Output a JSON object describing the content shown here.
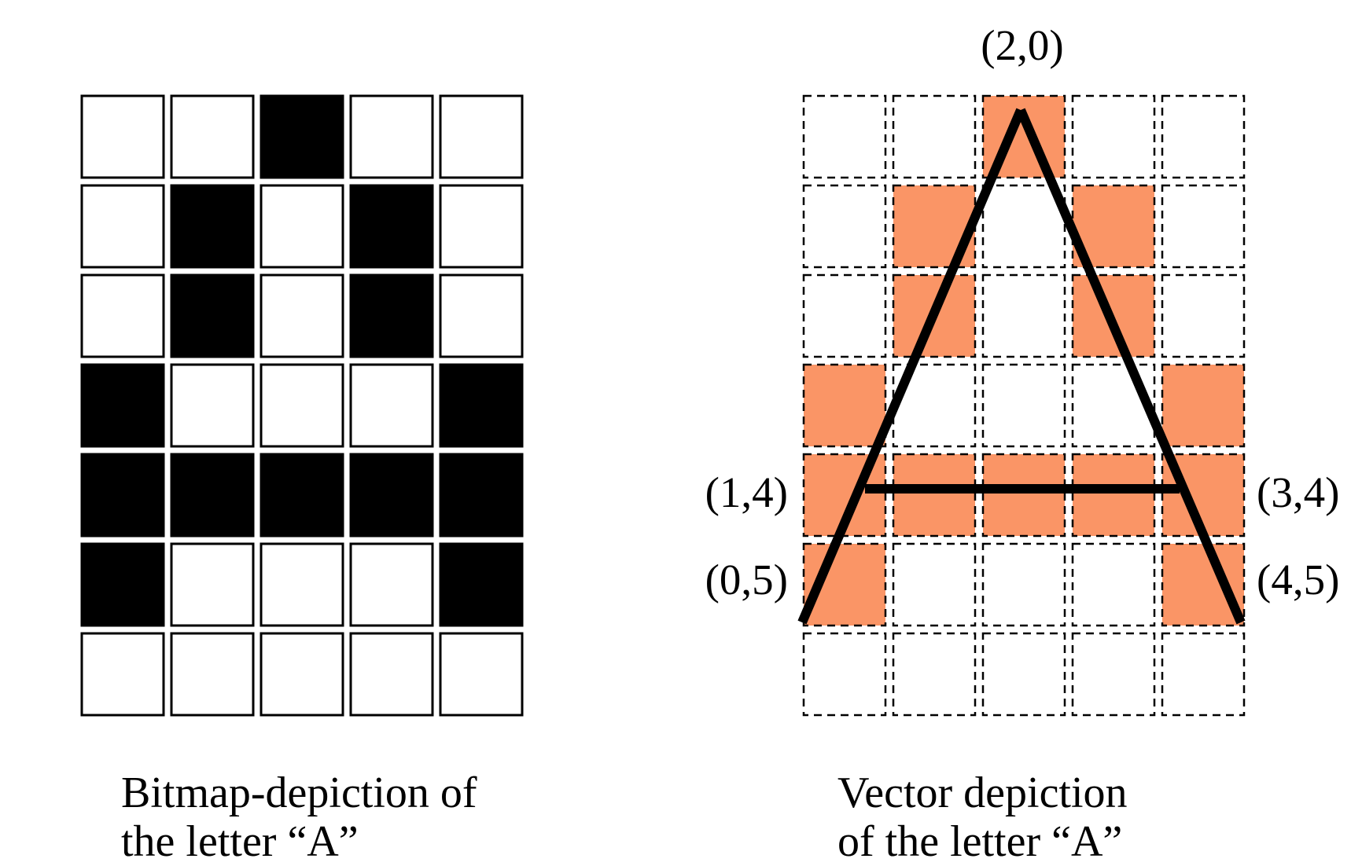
{
  "bitmap": {
    "rows": [
      [
        0,
        0,
        1,
        0,
        0
      ],
      [
        0,
        1,
        0,
        1,
        0
      ],
      [
        0,
        1,
        0,
        1,
        0
      ],
      [
        1,
        0,
        0,
        0,
        1
      ],
      [
        1,
        1,
        1,
        1,
        1
      ],
      [
        1,
        0,
        0,
        0,
        1
      ],
      [
        0,
        0,
        0,
        0,
        0
      ]
    ],
    "on_color": "#000000",
    "off_color": "#ffffff",
    "caption_line1": "Bitmap-depiction of",
    "caption_line2": "the letter “A”"
  },
  "vector": {
    "rows": [
      [
        0,
        0,
        1,
        0,
        0
      ],
      [
        0,
        1,
        0,
        1,
        0
      ],
      [
        0,
        1,
        0,
        1,
        0
      ],
      [
        1,
        0,
        0,
        0,
        1
      ],
      [
        1,
        1,
        1,
        1,
        1
      ],
      [
        1,
        0,
        0,
        0,
        1
      ],
      [
        0,
        0,
        0,
        0,
        0
      ]
    ],
    "highlight_color": "#fa9566",
    "points": {
      "apex": "(2,0)",
      "crossbar_left": "(1,4)",
      "crossbar_right": "(3,4)",
      "base_left": "(0,5)",
      "base_right": "(4,5)"
    },
    "caption_line1": "Vector depiction",
    "caption_line2": "of the letter “A”"
  }
}
